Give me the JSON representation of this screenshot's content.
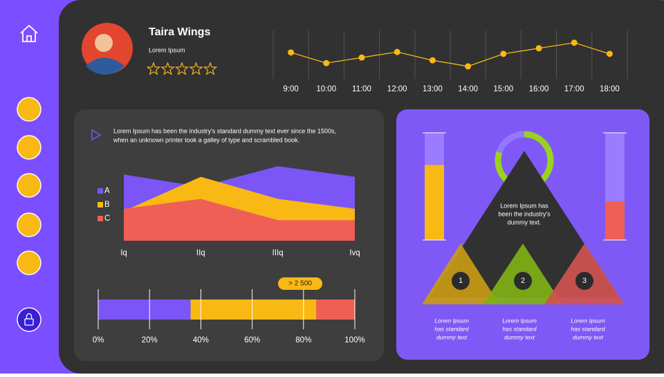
{
  "profile": {
    "name": "Taira Wings",
    "subtitle": "Lorem Ipsum"
  },
  "intro_text": [
    "Lorem Ipsum has been the industry's standard dummy text ever since the 1500s,",
    "when an unknown printer took a galley of type and scrambled book."
  ],
  "diagram": {
    "center_text": [
      "Lorem Ipsum has",
      "been the industry's",
      "dummy text."
    ],
    "steps": [
      {
        "number": "1",
        "text": [
          "Lorem Ipsum",
          "has standard",
          "dummy text"
        ]
      },
      {
        "number": "2",
        "text": [
          "Lorem Ipsum",
          "has standard",
          "dummy text"
        ]
      },
      {
        "number": "3",
        "text": [
          "Lorem Ipsum",
          "has standard",
          "dummy text"
        ]
      }
    ]
  },
  "chart_data": [
    {
      "type": "line",
      "categories": [
        "9:00",
        "10:00",
        "11:00",
        "12:00",
        "13:00",
        "14:00",
        "15:00",
        "16:00",
        "17:00",
        "18:00"
      ],
      "values": [
        54,
        31,
        43,
        55,
        37,
        24,
        51,
        63,
        75,
        51
      ],
      "color": "#f9b914",
      "ylim": [
        0,
        100
      ]
    },
    {
      "type": "area",
      "categories": [
        "Iq",
        "IIq",
        "IIIq",
        "Ivq"
      ],
      "ylim": [
        0,
        100
      ],
      "legend": "left",
      "series": [
        {
          "name": "A",
          "color": "#7b55f5",
          "values": [
            87,
            71,
            98,
            84
          ]
        },
        {
          "name": "B",
          "color": "#f9b914",
          "values": [
            39,
            84,
            55,
            42
          ]
        },
        {
          "name": "C",
          "color": "#ef5f56",
          "values": [
            42,
            55,
            27,
            27
          ]
        }
      ]
    },
    {
      "type": "bar",
      "orientation": "horizontal",
      "stacked": true,
      "values": [
        36,
        49,
        15
      ],
      "colors": [
        "#7b55f5",
        "#f9b914",
        "#ef5f56"
      ],
      "xlim": [
        0,
        100
      ],
      "grid": true,
      "annotation": "> 2 500",
      "xticks": [
        {
          "value": 0,
          "label": "0%"
        },
        {
          "value": 20,
          "label": "20%"
        },
        {
          "value": 40,
          "label": "40%"
        },
        {
          "value": 60,
          "label": "60%"
        },
        {
          "value": 80,
          "label": "80%"
        },
        {
          "value": 100,
          "label": "100%"
        }
      ]
    },
    {
      "type": "bar",
      "orientation": "vertical",
      "categories": [
        null,
        null
      ],
      "values": [
        70,
        36
      ],
      "colors": [
        "#f9b914",
        "#ef5f56"
      ],
      "ylim": [
        0,
        100
      ]
    },
    {
      "type": "pie",
      "values": [
        80,
        20
      ],
      "colors": [
        "#9bd21c",
        "#9378ff"
      ]
    }
  ]
}
